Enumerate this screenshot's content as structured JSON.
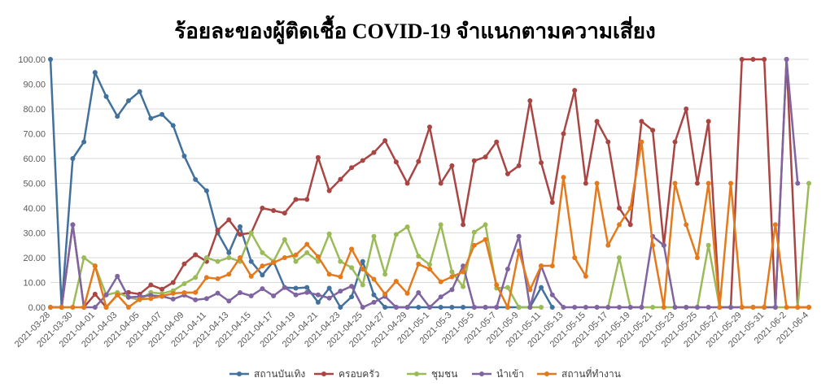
{
  "chart_data": {
    "type": "line",
    "title": "ร้อยละของผู้ติดเชื้อ COVID-19 จำแนกตามความเสี่ยง",
    "xlabel": "",
    "ylabel": "",
    "ylim": [
      0,
      100
    ],
    "yticks": [
      "0.00",
      "10.00",
      "20.00",
      "30.00",
      "40.00",
      "50.00",
      "60.00",
      "70.00",
      "80.00",
      "90.00",
      "100.00"
    ],
    "grid": true,
    "legend_position": "bottom",
    "x_tick_labels": [
      "2021-03-28",
      "2021-03-30",
      "2021-04-01",
      "2021-04-03",
      "2021-04-05",
      "2021-04-07",
      "2021-04-09",
      "2021-04-11",
      "2021-04-13",
      "2021-04-15",
      "2021-04-17",
      "2021-04-19",
      "2021-04-21",
      "2021-04-23",
      "2021-04-25",
      "2021-04-27",
      "2021-04-29",
      "2021-05-1",
      "2021-05-3",
      "2021-05-5",
      "2021-05-7",
      "2021-05-9",
      "2021-05-11",
      "2021-05-13",
      "2021-05-15",
      "2021-05-17",
      "2021-05-19",
      "2021-05-21",
      "2021-05-23",
      "2021-05-25",
      "2021-05-27",
      "2021-05-29",
      "2021-05-31",
      "2021-06-2",
      "2021-06-4"
    ],
    "series": [
      {
        "name": "สถานบันเทิง",
        "color": "#41719c",
        "values": [
          100,
          0,
          60,
          66.7,
          94.7,
          85,
          77,
          83.3,
          87,
          76.2,
          77.8,
          73.3,
          61,
          51.5,
          47,
          30,
          22,
          32.5,
          18.5,
          13,
          18.5,
          8,
          7.7,
          8,
          2,
          7.7,
          0,
          4.2,
          18.5,
          5,
          0,
          0,
          0,
          0,
          0,
          0,
          0,
          0,
          0,
          0,
          0,
          0,
          0,
          0,
          8,
          0,
          null,
          null,
          null,
          null,
          null,
          null,
          null,
          null,
          null,
          null,
          null,
          null,
          null,
          null,
          null,
          null,
          null,
          null,
          null,
          null,
          null,
          null,
          null
        ]
      },
      {
        "name": "ครอบครัว",
        "color": "#a94644",
        "values": [
          0,
          0,
          33.3,
          0,
          5.3,
          0,
          5,
          6,
          5.3,
          9,
          7.3,
          10,
          17.5,
          21.2,
          18.5,
          31.1,
          35.3,
          29.4,
          30,
          40,
          39,
          38,
          43.5,
          43.5,
          60.4,
          47,
          51.6,
          56.3,
          59.2,
          62.4,
          67.2,
          58.6,
          50,
          58.8,
          72.7,
          50,
          57.1,
          33.3,
          59.1,
          60.6,
          66.7,
          53.8,
          57.1,
          83.3,
          58.3,
          42.3,
          70,
          87.5,
          50,
          75,
          66.7,
          40,
          33.3,
          75,
          71.4,
          25,
          66.7,
          80,
          50,
          75,
          0,
          0,
          100,
          100,
          100,
          0,
          100,
          0,
          0
        ]
      },
      {
        "name": "ชุมชน",
        "color": "#9bbb59",
        "values": [
          0,
          0,
          0,
          20,
          16.7,
          5,
          6,
          4,
          3,
          6,
          5.5,
          6.7,
          9.5,
          12,
          20,
          18.5,
          20,
          18.5,
          30,
          22,
          18.5,
          27.3,
          18.5,
          22,
          18.5,
          29.6,
          18.5,
          16,
          9,
          28.6,
          13.3,
          29.4,
          32.4,
          20.6,
          17.2,
          33.3,
          14.3,
          8.3,
          30.3,
          33.3,
          7.7,
          8,
          0,
          0,
          0,
          null,
          null,
          null,
          null,
          0,
          0,
          20,
          0,
          0,
          0,
          0,
          0,
          0,
          0,
          25,
          0,
          0,
          0,
          0,
          0,
          0,
          0,
          0,
          50
        ]
      },
      {
        "name": "นำเข้า",
        "color": "#7f64a0",
        "values": [
          0,
          0,
          33.3,
          0,
          0,
          5,
          12.5,
          4,
          4.3,
          4.8,
          4.4,
          3.3,
          4.9,
          3,
          3.5,
          5.7,
          2.5,
          5.9,
          4.6,
          7.5,
          4.6,
          8,
          5,
          6,
          5,
          3.7,
          6.5,
          8.5,
          0,
          2,
          4.4,
          0,
          0,
          5.9,
          0,
          4.2,
          7.1,
          16.7,
          0,
          0,
          0,
          15.4,
          28.6,
          0,
          16.7,
          5,
          0,
          0,
          0,
          0,
          0,
          0,
          0,
          0,
          28.6,
          25,
          0,
          0,
          0,
          0,
          0,
          0,
          0,
          0,
          0,
          0,
          100,
          50,
          null
        ]
      },
      {
        "name": "สถานที่ทำงาน",
        "color": "#e47a1c",
        "values": [
          0,
          0,
          0,
          0,
          16.7,
          0,
          5,
          0,
          3.3,
          3.5,
          4.5,
          5.6,
          5.9,
          6,
          12,
          11.5,
          13.3,
          20,
          12.5,
          16.7,
          18,
          20,
          21.1,
          25.4,
          20.4,
          13.3,
          12.3,
          23.5,
          15.4,
          11.3,
          5.3,
          10.5,
          5.6,
          17.4,
          15.4,
          10.3,
          12.3,
          14.3,
          25,
          27.3,
          9,
          0,
          22.7,
          7.1,
          16.7,
          16.7,
          52.4,
          20,
          12.5,
          50,
          25,
          33.3,
          40,
          66.7,
          25,
          0,
          50,
          33.3,
          20,
          50,
          0,
          50,
          0,
          0,
          0,
          33.3,
          0,
          0,
          0
        ]
      }
    ]
  }
}
